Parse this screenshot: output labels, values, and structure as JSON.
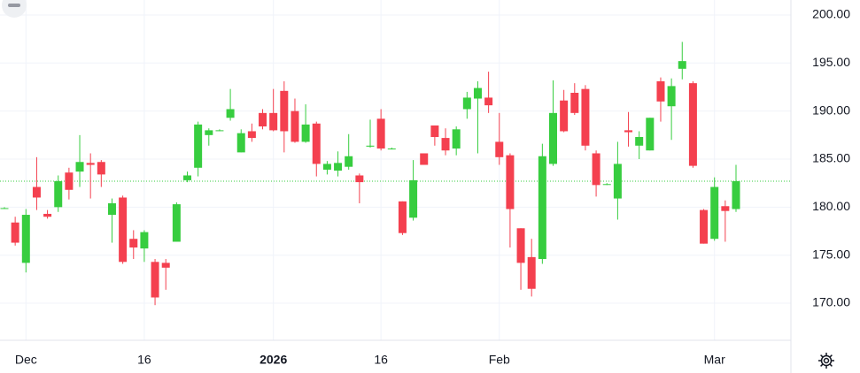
{
  "chart_data": {
    "type": "candlestick",
    "categories": [
      null,
      null,
      "Dec",
      null,
      null,
      null,
      null,
      null,
      null,
      null,
      null,
      null,
      null,
      "16",
      null,
      null,
      null,
      null,
      null,
      null,
      null,
      null,
      null,
      null,
      null,
      "2026",
      null,
      null,
      null,
      null,
      null,
      null,
      null,
      null,
      null,
      "16",
      null,
      null,
      null,
      null,
      null,
      null,
      null,
      null,
      null,
      null,
      "Feb",
      null,
      null,
      null,
      null,
      null,
      null,
      null,
      null,
      null,
      null,
      null,
      null,
      null,
      null,
      null,
      null,
      null,
      null,
      null,
      "Mar",
      null,
      null
    ],
    "open": [
      179.9,
      178.4,
      174.2,
      182.1,
      179.3,
      180.0,
      183.6,
      183.7,
      184.6,
      184.7,
      179.2,
      181.0,
      176.7,
      175.7,
      174.3,
      174.2,
      176.4,
      182.8,
      184.1,
      187.5,
      188.0,
      189.3,
      185.7,
      187.9,
      189.8,
      189.8,
      192.1,
      190.0,
      186.8,
      188.7,
      183.9,
      183.8,
      184.2,
      183.3,
      186.3,
      189.2,
      186.1,
      180.6,
      178.9,
      185.6,
      188.5,
      187.2,
      186.1,
      190.2,
      191.3,
      191.4,
      186.8,
      185.4,
      177.8,
      174.8,
      174.6,
      184.5,
      191.1,
      191.9,
      192.3,
      185.6,
      182.4,
      180.9,
      188.0,
      186.4,
      185.9,
      193.1,
      190.5,
      194.4,
      192.9,
      179.7,
      176.7,
      180.1,
      179.8
    ],
    "high": [
      180.0,
      179.0,
      179.8,
      185.2,
      179.7,
      183.3,
      184.1,
      187.5,
      185.6,
      184.9,
      180.9,
      181.2,
      177.6,
      177.6,
      174.6,
      174.6,
      180.5,
      183.7,
      188.9,
      188.2,
      188.1,
      192.3,
      188.1,
      188.7,
      190.2,
      192.3,
      193.1,
      191.3,
      190.7,
      188.9,
      184.8,
      185.8,
      187.6,
      183.5,
      189.1,
      190.2,
      186.2,
      180.6,
      184.9,
      185.6,
      188.5,
      188.2,
      188.4,
      192.0,
      193.1,
      194.1,
      189.8,
      185.6,
      177.8,
      176.7,
      186.6,
      193.2,
      192.2,
      192.9,
      192.7,
      185.9,
      182.5,
      186.8,
      189.9,
      187.9,
      189.3,
      193.5,
      193.4,
      197.2,
      193.1,
      179.8,
      183.1,
      180.7,
      184.4
    ],
    "low": [
      179.8,
      176.0,
      173.2,
      179.7,
      178.8,
      179.5,
      180.8,
      182.1,
      180.9,
      182.1,
      176.3,
      174.1,
      174.6,
      174.3,
      169.8,
      171.4,
      176.4,
      182.6,
      183.2,
      186.4,
      187.9,
      189.0,
      185.7,
      186.8,
      188.1,
      187.9,
      185.7,
      186.7,
      186.7,
      183.2,
      183.4,
      183.2,
      183.9,
      180.4,
      186.2,
      185.9,
      186.0,
      177.1,
      178.6,
      184.4,
      186.4,
      185.4,
      185.4,
      189.2,
      185.6,
      189.8,
      184.4,
      175.8,
      171.4,
      170.7,
      174.1,
      184.3,
      187.8,
      189.6,
      185.9,
      181.1,
      182.3,
      178.7,
      186.3,
      185.0,
      185.9,
      188.9,
      187.0,
      193.3,
      184.1,
      176.2,
      176.5,
      176.4,
      179.5
    ],
    "close": [
      179.9,
      176.3,
      179.2,
      181.0,
      179.0,
      182.7,
      181.8,
      184.7,
      184.4,
      183.4,
      180.4,
      174.3,
      175.8,
      177.4,
      170.6,
      173.7,
      180.3,
      183.3,
      188.6,
      188.0,
      188.0,
      190.2,
      187.7,
      187.2,
      188.4,
      188.0,
      187.9,
      186.8,
      188.6,
      184.5,
      184.5,
      184.6,
      185.3,
      182.6,
      186.4,
      186.1,
      186.1,
      177.3,
      182.8,
      184.4,
      187.3,
      185.9,
      188.1,
      191.4,
      192.4,
      190.6,
      185.2,
      179.8,
      174.2,
      171.5,
      185.3,
      189.8,
      187.9,
      189.8,
      186.4,
      182.3,
      182.4,
      184.5,
      187.8,
      187.3,
      189.3,
      191.0,
      192.6,
      195.2,
      184.3,
      176.2,
      182.1,
      179.6,
      182.7
    ],
    "up_color": "#37cd3f",
    "down_color": "#f4404f",
    "ylim": [
      166.14,
      201.56
    ],
    "yticks": [
      {
        "value": 170,
        "label": "170.00"
      },
      {
        "value": 175,
        "label": "175.00"
      },
      {
        "value": 180,
        "label": "180.00"
      },
      {
        "value": 185,
        "label": "185.00"
      },
      {
        "value": 190,
        "label": "190.00"
      },
      {
        "value": 195,
        "label": "195.00"
      },
      {
        "value": 200,
        "label": "200.00"
      }
    ],
    "grid": true
  }
}
